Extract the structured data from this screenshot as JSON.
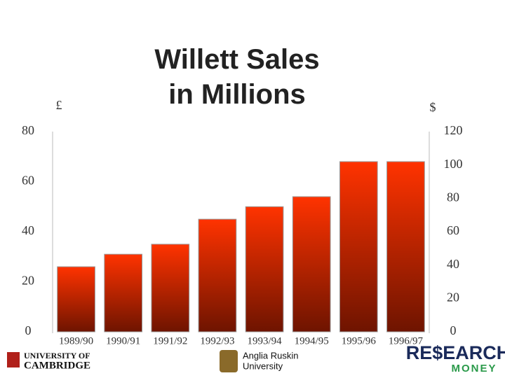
{
  "chart_data": {
    "type": "bar",
    "title": "Willett Sales in Millions",
    "y_label": "£",
    "y2_label": "$",
    "categories": [
      "1989/90",
      "1990/91",
      "1991/92",
      "1992/93",
      "1993/94",
      "1994/95",
      "1995/96",
      "1996/97"
    ],
    "series": [
      {
        "name": "Sales",
        "color": "#ff3300",
        "values": [
          26,
          31,
          35,
          45,
          50,
          54,
          68,
          68
        ]
      }
    ],
    "ylim": [
      0,
      80
    ],
    "yticks": [
      0,
      20,
      40,
      60,
      80
    ],
    "y2lim": [
      0,
      120
    ],
    "y2ticks": [
      0,
      20,
      40,
      60,
      80,
      100,
      120
    ]
  },
  "logos": {
    "cambridge": [
      "UNIVERSITY OF",
      "CAMBRIDGE"
    ],
    "anglia": [
      "Anglia Ruskin",
      "University"
    ],
    "research": [
      "RE$EARCH",
      "MONEY"
    ]
  }
}
